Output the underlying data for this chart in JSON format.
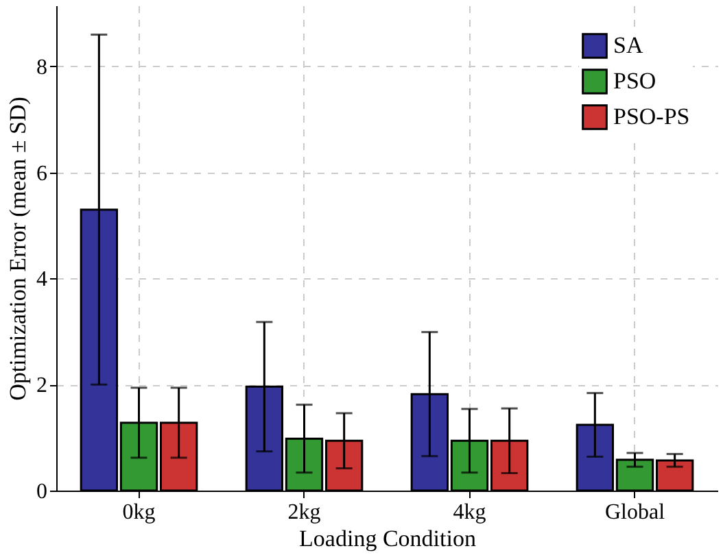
{
  "chart_data": {
    "type": "bar",
    "xlabel": "Loading Condition",
    "ylabel": "Optimization Error (mean ± SD)",
    "categories": [
      "0kg",
      "2kg",
      "4kg",
      "Global"
    ],
    "series": [
      {
        "name": "SA",
        "color": "#333399",
        "values": [
          5.3,
          1.96,
          1.82,
          1.24
        ],
        "errors": [
          3.3,
          1.22,
          1.17,
          0.6
        ]
      },
      {
        "name": "PSO",
        "color": "#339933",
        "values": [
          1.28,
          0.98,
          0.94,
          0.58
        ],
        "errors": [
          0.66,
          0.64,
          0.6,
          0.13
        ]
      },
      {
        "name": "PSO-PS",
        "color": "#cc3333",
        "values": [
          1.28,
          0.94,
          0.94,
          0.57
        ],
        "errors": [
          0.66,
          0.52,
          0.61,
          0.12
        ]
      }
    ],
    "ylim": [
      0,
      9.15
    ],
    "yticks": [
      0,
      2,
      4,
      6,
      8
    ],
    "grid": true,
    "legend": "top right"
  }
}
